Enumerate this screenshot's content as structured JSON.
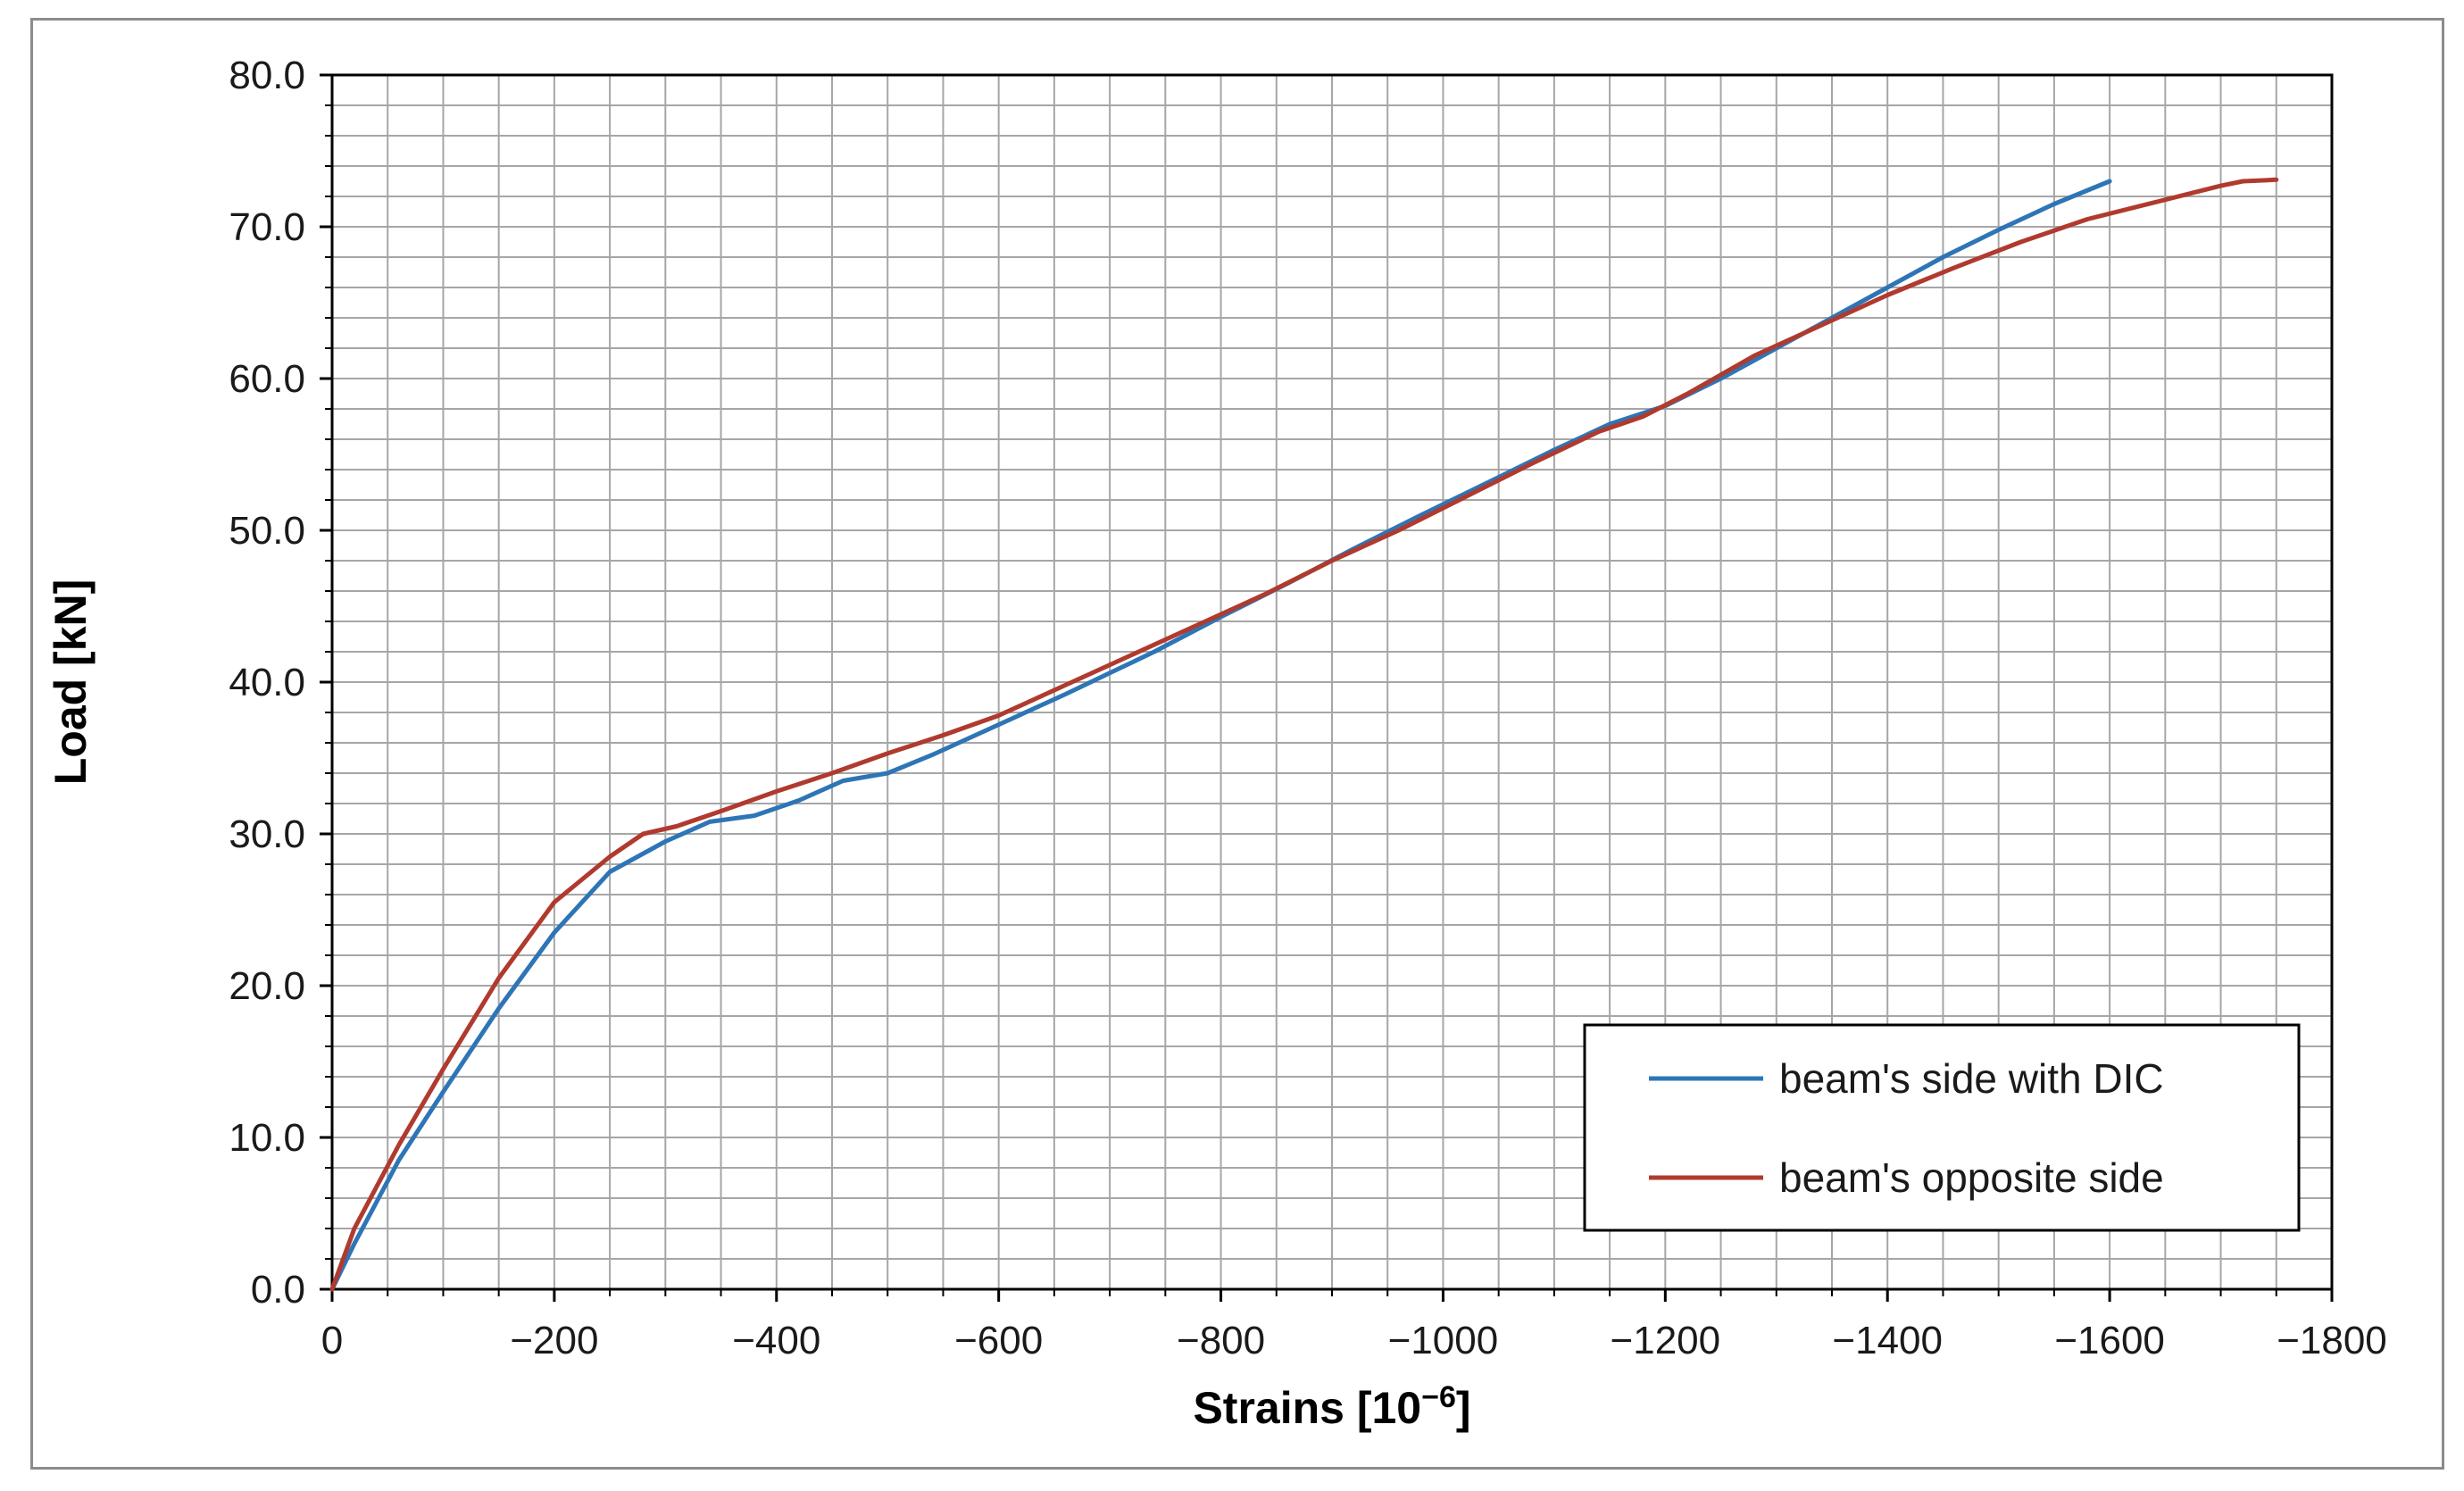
{
  "chart_data": {
    "type": "line",
    "title": "",
    "xlabel": "Strains [10",
    "xlabel_exponent": "−6",
    "xlabel_close": "]",
    "ylabel": "Load [kN]",
    "xlim": [
      0,
      -1800
    ],
    "ylim": [
      0,
      80
    ],
    "x_ticks": [
      0,
      -200,
      -400,
      -600,
      -800,
      -1000,
      -1200,
      -1400,
      -1600,
      -1800
    ],
    "x_tick_labels": [
      "0",
      "−200",
      "−400",
      "−600",
      "−800",
      "−1000",
      "−1200",
      "−1400",
      "−1600",
      "−1800"
    ],
    "y_ticks": [
      0,
      10,
      20,
      30,
      40,
      50,
      60,
      70,
      80
    ],
    "y_tick_labels": [
      "0.0",
      "10.0",
      "20.0",
      "30.0",
      "40.0",
      "50.0",
      "60.0",
      "70.0",
      "80.0"
    ],
    "grid": true,
    "minor_grid_x_step": -50,
    "minor_grid_y_step": 2,
    "legend_position": "bottom-right",
    "series": [
      {
        "name": "beam's side with DIC",
        "color": "#2e75b6",
        "x": [
          0,
          -20,
          -60,
          -100,
          -150,
          -200,
          -250,
          -300,
          -340,
          -380,
          -420,
          -460,
          -500,
          -540,
          -600,
          -660,
          -700,
          -740,
          -800,
          -860,
          -920,
          -980,
          -1050,
          -1100,
          -1150,
          -1200,
          -1250,
          -1300,
          -1350,
          -1400,
          -1450,
          -1500,
          -1550,
          -1600
        ],
        "y": [
          0,
          3,
          8.5,
          13,
          18.5,
          23.5,
          27.5,
          29.5,
          30.8,
          31.2,
          32.2,
          33.5,
          34.0,
          35.2,
          37.2,
          39.2,
          40.6,
          42,
          44.3,
          46.5,
          48.8,
          51.0,
          53.5,
          55.3,
          57.0,
          58.2,
          60.0,
          62.0,
          64.0,
          66.0,
          68.0,
          69.8,
          71.5,
          73.0
        ]
      },
      {
        "name": "beam's opposite side",
        "color": "#b03a2e",
        "x": [
          0,
          -20,
          -60,
          -100,
          -150,
          -200,
          -250,
          -280,
          -310,
          -350,
          -400,
          -450,
          -500,
          -550,
          -600,
          -660,
          -720,
          -780,
          -840,
          -900,
          -960,
          -1020,
          -1080,
          -1140,
          -1180,
          -1220,
          -1280,
          -1340,
          -1400,
          -1460,
          -1520,
          -1580,
          -1640,
          -1700,
          -1720,
          -1750
        ],
        "y": [
          0,
          4,
          9.5,
          14.5,
          20.5,
          25.5,
          28.5,
          30,
          30.5,
          31.5,
          32.8,
          34.0,
          35.3,
          36.5,
          37.8,
          39.8,
          41.8,
          43.8,
          45.8,
          48.0,
          50.0,
          52.2,
          54.4,
          56.5,
          57.5,
          59.0,
          61.5,
          63.5,
          65.5,
          67.3,
          69.0,
          70.5,
          71.6,
          72.7,
          73.0,
          73.1
        ]
      }
    ]
  }
}
